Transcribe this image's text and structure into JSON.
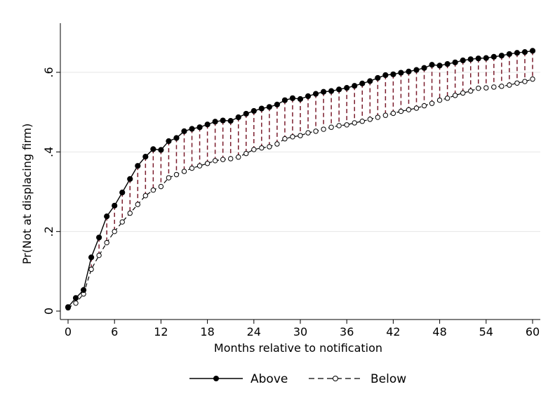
{
  "chart_data": {
    "type": "line",
    "title": "",
    "xlabel": "Months relative to notification",
    "ylabel": "Pr(Not at displacing firm)",
    "xlim": [
      0,
      60
    ],
    "ylim": [
      0,
      0.72
    ],
    "xticks": [
      0,
      6,
      12,
      18,
      24,
      30,
      36,
      42,
      48,
      54,
      60
    ],
    "yticks": [
      0,
      0.2,
      0.4,
      0.6
    ],
    "ytick_labels": [
      "0",
      ".2",
      ".4",
      ".6"
    ],
    "grid": "horizontal",
    "legend_position": "bottom",
    "x": [
      0,
      1,
      2,
      3,
      4,
      5,
      6,
      7,
      8,
      9,
      10,
      11,
      12,
      13,
      14,
      15,
      16,
      17,
      18,
      19,
      20,
      21,
      22,
      23,
      24,
      25,
      26,
      27,
      28,
      29,
      30,
      31,
      32,
      33,
      34,
      35,
      36,
      37,
      38,
      39,
      40,
      41,
      42,
      43,
      44,
      45,
      46,
      47,
      48,
      49,
      50,
      51,
      52,
      53,
      54,
      55,
      56,
      57,
      58,
      59,
      60
    ],
    "series": [
      {
        "name": "Above",
        "style": "solid-filled-circle",
        "color": "#000000",
        "values": [
          0.01,
          0.033,
          0.053,
          0.135,
          0.185,
          0.238,
          0.265,
          0.298,
          0.332,
          0.365,
          0.388,
          0.407,
          0.405,
          0.427,
          0.435,
          0.452,
          0.458,
          0.462,
          0.469,
          0.476,
          0.479,
          0.478,
          0.487,
          0.496,
          0.503,
          0.509,
          0.513,
          0.519,
          0.53,
          0.535,
          0.533,
          0.54,
          0.546,
          0.551,
          0.553,
          0.557,
          0.561,
          0.566,
          0.572,
          0.578,
          0.586,
          0.593,
          0.595,
          0.599,
          0.602,
          0.606,
          0.611,
          0.619,
          0.617,
          0.621,
          0.625,
          0.63,
          0.633,
          0.635,
          0.636,
          0.639,
          0.642,
          0.646,
          0.649,
          0.651,
          0.654
        ]
      },
      {
        "name": "Below",
        "style": "dashed-hollow-circle",
        "color": "#000000",
        "values": [
          0.008,
          0.02,
          0.043,
          0.105,
          0.14,
          0.172,
          0.2,
          0.224,
          0.246,
          0.268,
          0.29,
          0.304,
          0.313,
          0.335,
          0.343,
          0.351,
          0.359,
          0.365,
          0.371,
          0.378,
          0.381,
          0.383,
          0.387,
          0.396,
          0.406,
          0.41,
          0.413,
          0.42,
          0.433,
          0.438,
          0.441,
          0.448,
          0.452,
          0.457,
          0.462,
          0.466,
          0.468,
          0.473,
          0.477,
          0.482,
          0.487,
          0.492,
          0.497,
          0.502,
          0.506,
          0.51,
          0.516,
          0.522,
          0.53,
          0.535,
          0.542,
          0.548,
          0.553,
          0.56,
          0.561,
          0.563,
          0.565,
          0.568,
          0.573,
          0.577,
          0.583
        ]
      }
    ],
    "difference_markers": {
      "style": "dashed-vertical",
      "color": "#7a1c2c"
    }
  }
}
